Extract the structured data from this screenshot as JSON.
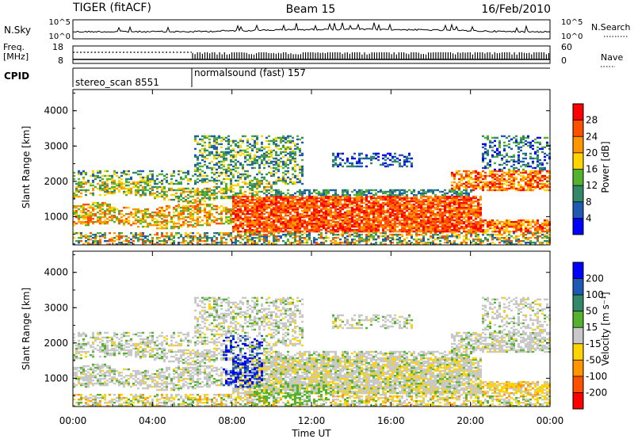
{
  "header": {
    "radar": "TIGER (fitACF)",
    "beam": "Beam 15",
    "date": "16/Feb/2010"
  },
  "nsky_panel": {
    "left_label": "N.Sky",
    "left_ticks": [
      "10^5",
      "10^0"
    ],
    "right_ticks": [
      "10^5",
      "10^0"
    ],
    "right_label": "N.Search"
  },
  "freq_panel": {
    "label_top": "Freq.",
    "label_bottom": "[MHz]",
    "left_ticks": [
      18,
      8
    ],
    "right_ticks": [
      60,
      0
    ],
    "right_label": "Nave"
  },
  "cpid_panel": {
    "label": "CPID",
    "modes": [
      {
        "name": "stereo_scan 8551",
        "start_hour": 0,
        "end_hour": 6
      },
      {
        "name": "normalsound (fast) 157",
        "start_hour": 6,
        "end_hour": 24
      }
    ]
  },
  "chart_data": [
    {
      "type": "heatmap",
      "name": "power-panel",
      "x_ticks": [
        "00:00",
        "04:00",
        "08:00",
        "12:00",
        "16:00",
        "20:00",
        "00:00"
      ],
      "x_range_hours": [
        0,
        24
      ],
      "ylabel": "Slant Range [km]",
      "y_ticks": [
        1000,
        2000,
        3000,
        4000
      ],
      "ylim": [
        200,
        4600
      ],
      "colorbar": {
        "label": "Power [dB]",
        "ticks": [
          4,
          8,
          12,
          16,
          20,
          24,
          28
        ],
        "colors": [
          "#0000ff",
          "#1e5ab4",
          "#33886a",
          "#55b22f",
          "#ffd400",
          "#ff9600",
          "#ff5000",
          "#ff0000"
        ]
      }
    },
    {
      "type": "heatmap",
      "name": "velocity-panel",
      "x_ticks": [
        "00:00",
        "04:00",
        "08:00",
        "12:00",
        "16:00",
        "20:00",
        "00:00"
      ],
      "x_range_hours": [
        0,
        24
      ],
      "xlabel": "Time UT",
      "ylabel": "Slant Range [km]",
      "y_ticks": [
        1000,
        2000,
        3000,
        4000
      ],
      "ylim": [
        200,
        4600
      ],
      "colorbar": {
        "label": "Velocity [m s⁻¹]",
        "ticks": [
          200,
          100,
          50,
          15,
          -15,
          -50,
          -100,
          -200
        ],
        "colors": [
          "#0000ff",
          "#1e5ab4",
          "#33886a",
          "#55b22f",
          "#c8c8c8",
          "#ffd400",
          "#ff9600",
          "#ff5000",
          "#ff0000"
        ]
      }
    }
  ]
}
